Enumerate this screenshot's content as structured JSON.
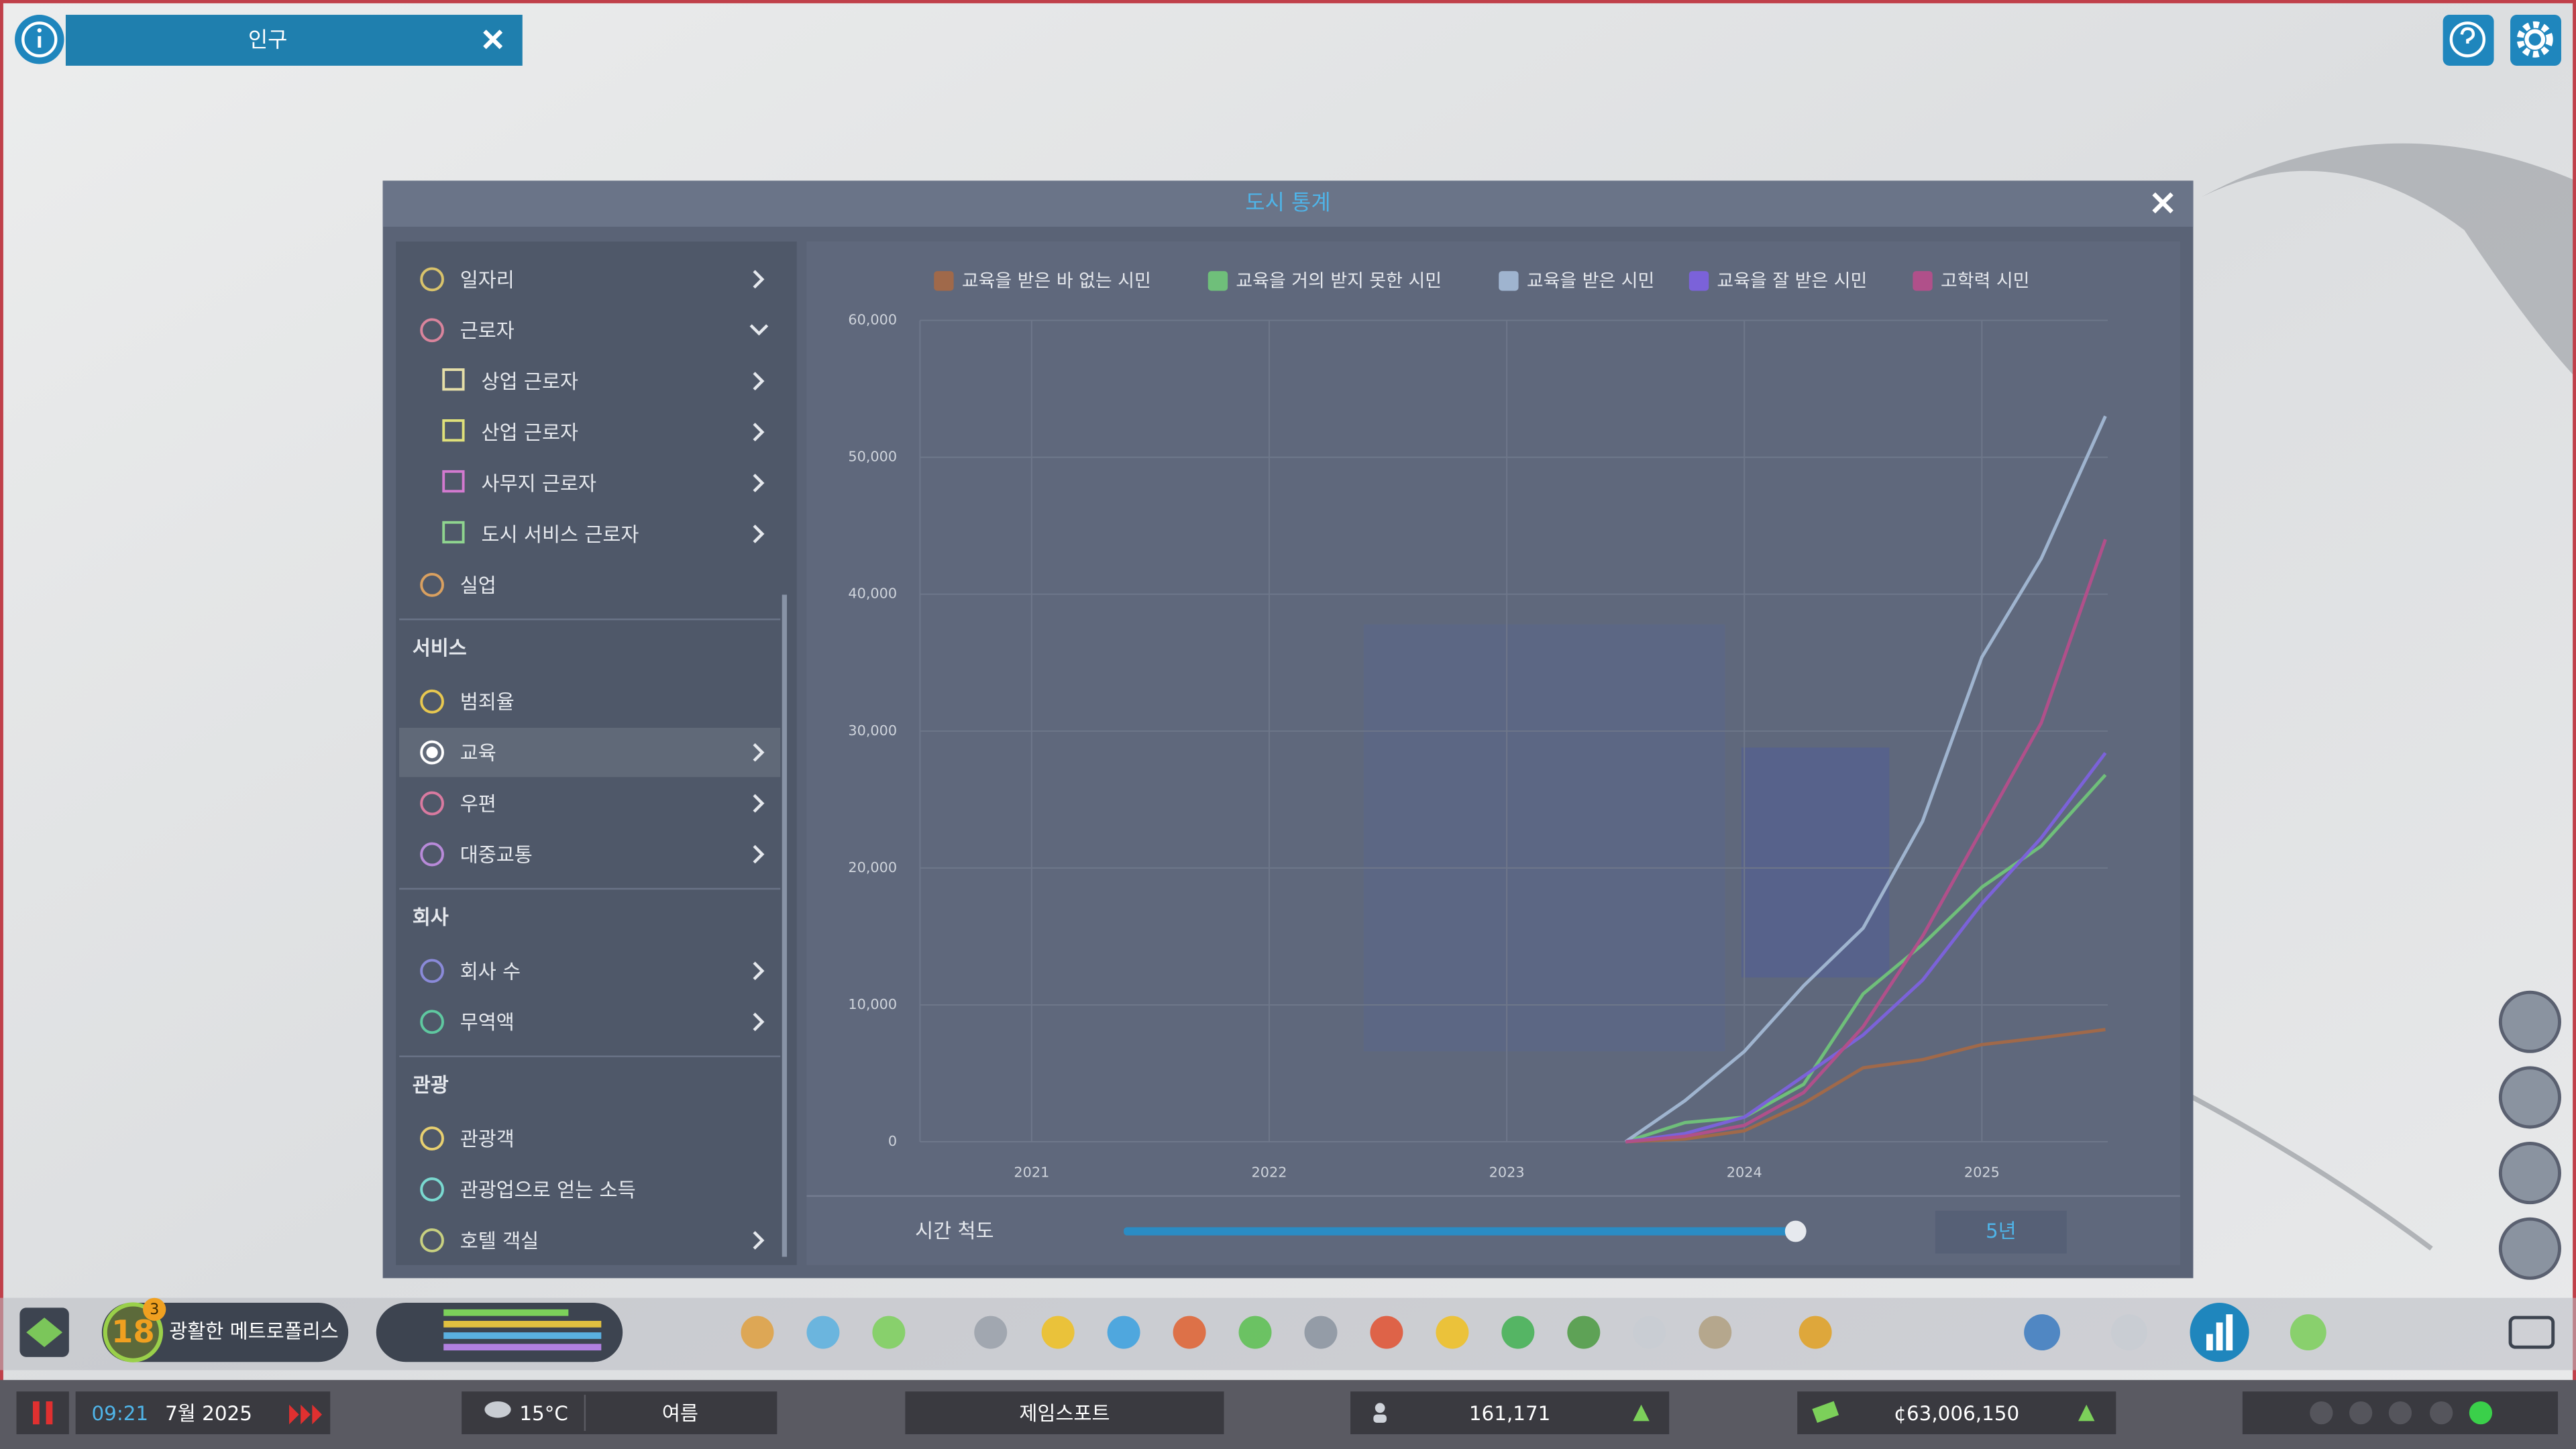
{
  "top_bar": {
    "tab_title": "인구"
  },
  "dialog": {
    "title": "도시 통계"
  },
  "sidebar": {
    "sections": [
      {
        "items": [
          {
            "label": "일자리",
            "marker": "circle",
            "color": "#d9c36b",
            "expand": "right"
          },
          {
            "label": "근로자",
            "marker": "circle",
            "color": "#d9849c",
            "expand": "down"
          },
          {
            "label": "상업 근로자",
            "marker": "square",
            "color": "#e6dfa8",
            "expand": "right"
          },
          {
            "label": "산업 근로자",
            "marker": "square",
            "color": "#dfe07a",
            "expand": "right"
          },
          {
            "label": "사무지 근로자",
            "marker": "square",
            "color": "#d37ad0",
            "expand": "right"
          },
          {
            "label": "도시 서비스 근로자",
            "marker": "square",
            "color": "#8fd48f",
            "expand": "right"
          },
          {
            "label": "실업",
            "marker": "circle",
            "color": "#d9a060",
            "expand": "none"
          }
        ]
      },
      {
        "heading": "서비스",
        "items": [
          {
            "label": "범죄율",
            "marker": "circle",
            "color": "#e8c850",
            "expand": "none"
          },
          {
            "label": "교육",
            "marker": "circle",
            "color": "#ffffff",
            "expand": "right",
            "selected": true
          },
          {
            "label": "우편",
            "marker": "circle",
            "color": "#d97aa0",
            "expand": "right"
          },
          {
            "label": "대중교통",
            "marker": "circle",
            "color": "#b88ad9",
            "expand": "right"
          }
        ]
      },
      {
        "heading": "회사",
        "items": [
          {
            "label": "회사 수",
            "marker": "circle",
            "color": "#8a8ad9",
            "expand": "right"
          },
          {
            "label": "무역액",
            "marker": "circle",
            "color": "#5fc8a0",
            "expand": "right"
          }
        ]
      },
      {
        "heading": "관광",
        "items": [
          {
            "label": "관광객",
            "marker": "circle",
            "color": "#e8d070",
            "expand": "none"
          },
          {
            "label": "관광업으로 얻는 소득",
            "marker": "circle",
            "color": "#7ad9d0",
            "expand": "none"
          },
          {
            "label": "호텔 객실",
            "marker": "circle",
            "color": "#c8d080",
            "expand": "right"
          }
        ]
      }
    ]
  },
  "chart_data": {
    "type": "line",
    "x": [
      2023.5,
      2023.75,
      2024,
      2024.25,
      2024.5,
      2024.75,
      2025,
      2025.25,
      2025.52
    ],
    "xlim": [
      2020.53,
      2025.53
    ],
    "xticks": [
      2021,
      2022,
      2023,
      2024,
      2025
    ],
    "ylim": [
      0,
      60000
    ],
    "yticks": [
      0,
      {
        "value": 10000,
        "label": "10,000"
      },
      {
        "value": 20000,
        "label": "20,000"
      },
      {
        "value": 30000,
        "label": "30,000"
      },
      {
        "value": 40000,
        "label": "40,000"
      },
      {
        "value": 50000,
        "label": "50,000"
      },
      {
        "value": 60000,
        "label": "60,000"
      }
    ],
    "grid": true,
    "legend": "top",
    "series": [
      {
        "name": "교육을 받은 바 없는 시민",
        "color": "#a0694a",
        "values": [
          0,
          200,
          800,
          2800,
          5400,
          6000,
          7100,
          7600,
          8200
        ]
      },
      {
        "name": "교육을 거의 받지 못한 시민",
        "color": "#6fbf7a",
        "values": [
          0,
          1400,
          1800,
          4200,
          10800,
          14400,
          18600,
          21600,
          26800
        ]
      },
      {
        "name": "교육을 받은 시민",
        "color": "#9fb4cf",
        "values": [
          0,
          3000,
          6600,
          11400,
          15600,
          23400,
          35400,
          42600,
          53000
        ]
      },
      {
        "name": "교육을 잘 받은 시민",
        "color": "#7b62d9",
        "values": [
          0,
          600,
          1800,
          4800,
          7800,
          11800,
          17400,
          22200,
          28400
        ]
      },
      {
        "name": "고학력 시민",
        "color": "#b0508a",
        "values": [
          0,
          400,
          1200,
          3600,
          8400,
          15000,
          22800,
          30600,
          44000
        ]
      }
    ]
  },
  "time_scale": {
    "label": "시간 척도",
    "value_text": "5년"
  },
  "status": {
    "level": "18",
    "level_badge": "3",
    "milestone": "광활한 메트로폴리스",
    "time": "09:21",
    "date": "7월 2025",
    "temperature": "15°C",
    "season": "여름",
    "city_name": "제임스포트",
    "population": "161,171",
    "money": "¢63,006,150"
  }
}
